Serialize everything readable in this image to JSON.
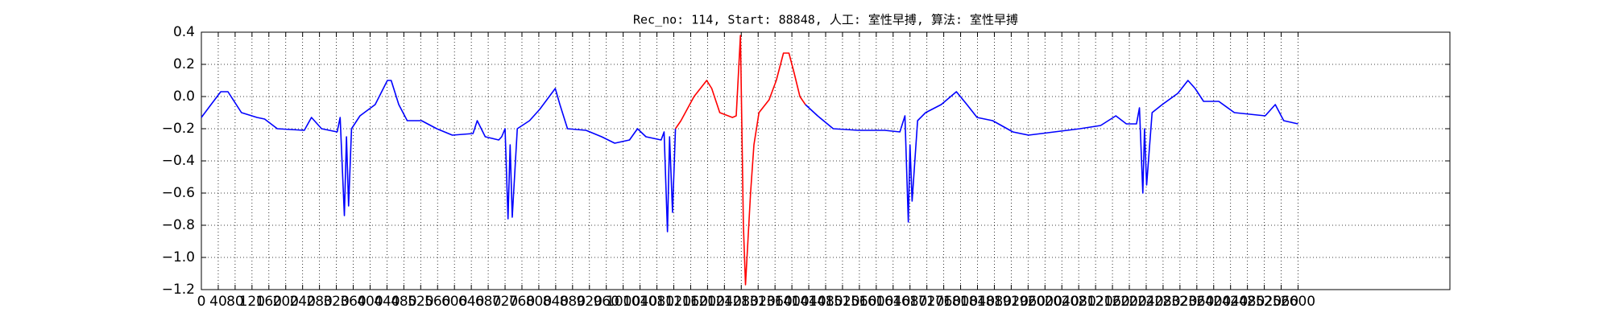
{
  "chart_data": {
    "type": "line",
    "title": "Rec_no: 114, Start: 88848, 人工: 室性早搏, 算法: 室性早搏",
    "x": [
      0,
      20,
      46,
      63,
      95,
      132,
      150,
      180,
      244,
      261,
      285,
      322,
      329,
      339,
      344,
      349,
      356,
      376,
      412,
      441,
      450,
      468,
      488,
      522,
      558,
      595,
      644,
      654,
      673,
      705,
      712,
      720,
      727,
      732,
      737,
      749,
      778,
      802,
      839,
      850,
      868,
      912,
      949,
      980,
      1015,
      1034,
      1054,
      1090,
      1097,
      1105,
      1110,
      1117,
      1124,
      1137,
      1168,
      1198,
      1210,
      1229,
      1259,
      1268,
      1278,
      1285,
      1290,
      1302,
      1310,
      1322,
      1346,
      1363,
      1380,
      1393,
      1405,
      1419,
      1432,
      1461,
      1498,
      1558,
      1620,
      1656,
      1668,
      1676,
      1680,
      1685,
      1698,
      1717,
      1754,
      1790,
      1815,
      1839,
      1876,
      1924,
      1961,
      2022,
      2083,
      2132,
      2168,
      2193,
      2217,
      2224,
      2232,
      2236,
      2241,
      2254,
      2278,
      2315,
      2339,
      2356,
      2376,
      2412,
      2449,
      2522,
      2546,
      2566,
      2600
    ],
    "series": [
      {
        "color": "#0000ff",
        "values": [
          -0.13,
          -0.06,
          0.03,
          0.03,
          -0.1,
          -0.13,
          -0.14,
          -0.2,
          -0.21,
          -0.13,
          -0.2,
          -0.22,
          -0.13,
          -0.74,
          -0.25,
          -0.68,
          -0.2,
          -0.12,
          -0.05,
          0.1,
          0.1,
          -0.05,
          -0.15,
          -0.15,
          -0.2,
          -0.24,
          -0.23,
          -0.15,
          -0.25,
          -0.27,
          -0.25,
          -0.2,
          -0.76,
          -0.3,
          -0.75,
          -0.2,
          -0.15,
          -0.08,
          0.05,
          -0.05,
          -0.2,
          -0.21,
          -0.25,
          -0.29,
          -0.27,
          -0.2,
          -0.25,
          -0.27,
          -0.22,
          -0.84,
          -0.25,
          -0.72,
          -0.2,
          null,
          null,
          null,
          null,
          null,
          null,
          null,
          null,
          null,
          null,
          null,
          null,
          null,
          null,
          null,
          null,
          null,
          null,
          null,
          -0.05,
          -0.12,
          -0.2,
          -0.21,
          -0.21,
          -0.22,
          -0.12,
          -0.78,
          -0.3,
          -0.65,
          -0.15,
          -0.1,
          -0.05,
          0.03,
          -0.05,
          -0.13,
          -0.15,
          -0.22,
          -0.24,
          -0.22,
          -0.2,
          -0.18,
          -0.12,
          -0.17,
          -0.17,
          -0.07,
          -0.6,
          -0.2,
          -0.55,
          -0.1,
          -0.05,
          0.02,
          0.1,
          0.05,
          -0.03,
          -0.03,
          -0.1,
          -0.12,
          -0.05,
          -0.15,
          -0.17
        ]
      },
      {
        "color": "#ff0000",
        "values": [
          null,
          null,
          null,
          null,
          null,
          null,
          null,
          null,
          null,
          null,
          null,
          null,
          null,
          null,
          null,
          null,
          null,
          null,
          null,
          null,
          null,
          null,
          null,
          null,
          null,
          null,
          null,
          null,
          null,
          null,
          null,
          null,
          null,
          null,
          null,
          null,
          null,
          null,
          null,
          null,
          null,
          null,
          null,
          null,
          null,
          null,
          null,
          null,
          null,
          null,
          null,
          null,
          -0.2,
          -0.15,
          0.0,
          0.1,
          0.05,
          -0.1,
          -0.13,
          -0.12,
          0.38,
          -0.8,
          -1.17,
          -0.6,
          -0.3,
          -0.1,
          -0.02,
          0.1,
          0.27,
          0.27,
          0.15,
          0.0,
          -0.05,
          null,
          null,
          null,
          null,
          null,
          null,
          null,
          null,
          null,
          null,
          null,
          null,
          null,
          null,
          null,
          null,
          null,
          null,
          null,
          null,
          null,
          null,
          null,
          null,
          null,
          null,
          null,
          null,
          null,
          null,
          null,
          null,
          null,
          null,
          null,
          null,
          null,
          null,
          null,
          null
        ]
      }
    ],
    "xlim": [
      0,
      2960
    ],
    "xticks": [
      0,
      40,
      80,
      120,
      160,
      200,
      240,
      280,
      320,
      360,
      400,
      440,
      480,
      520,
      560,
      600,
      640,
      680,
      720,
      760,
      800,
      840,
      880,
      920,
      960,
      1000,
      1040,
      1080,
      1120,
      1160,
      1200,
      1240,
      1280,
      1320,
      1360,
      1400,
      1440,
      1480,
      1520,
      1560,
      1600,
      1640,
      1680,
      1720,
      1760,
      1800,
      1840,
      1880,
      1920,
      1960,
      2000,
      2040,
      2080,
      2120,
      2160,
      2200,
      2240,
      2280,
      2320,
      2360,
      2400,
      2440,
      2480,
      2520,
      2560,
      2600
    ],
    "ylim": [
      -1.2,
      0.4
    ],
    "yticks": [
      {
        "value": -1.2,
        "label": "−1.2"
      },
      {
        "value": -1.0,
        "label": "−1.0"
      },
      {
        "value": -0.8,
        "label": "−0.8"
      },
      {
        "value": -0.6,
        "label": "−0.6"
      },
      {
        "value": -0.4,
        "label": "−0.4"
      },
      {
        "value": -0.2,
        "label": "−0.2"
      },
      {
        "value": 0.0,
        "label": "0.0"
      },
      0.2,
      0.4
    ],
    "grid": true
  }
}
